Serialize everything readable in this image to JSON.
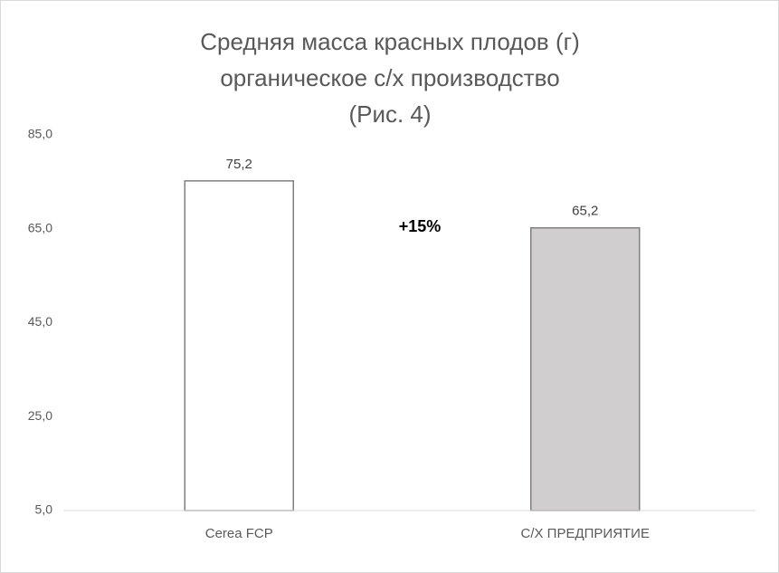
{
  "chart_data": {
    "type": "bar",
    "title": [
      "Средняя масса красных плодов (г)",
      "органическое с/х производство",
      "(Рис. 4)"
    ],
    "categories": [
      "Cerea FCP",
      "С/Х ПРЕДПРИЯТИЕ"
    ],
    "values": [
      75.2,
      65.2
    ],
    "value_labels": [
      "75,2",
      "65,2"
    ],
    "colors": [
      "#ffffff",
      "#d0cece"
    ],
    "edge_color": "#7f7f7f",
    "annotation": "+15%",
    "ylim": [
      5,
      85
    ],
    "yticks": [
      {
        "value": 5,
        "label": "5,0"
      },
      {
        "value": 25,
        "label": "25,0"
      },
      {
        "value": 45,
        "label": "45,0"
      },
      {
        "value": 65,
        "label": "65,0"
      },
      {
        "value": 85,
        "label": "85,0"
      }
    ],
    "grid": false
  }
}
